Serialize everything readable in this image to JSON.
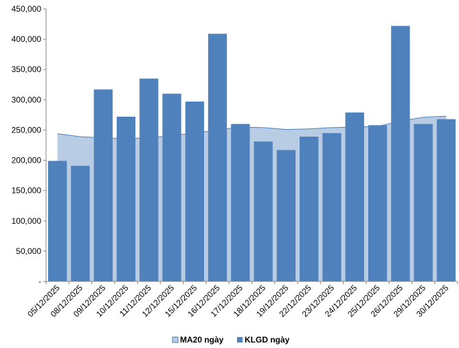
{
  "chart_data": {
    "type": "bar",
    "title": "",
    "xlabel": "",
    "ylabel": "",
    "ylim": [
      0,
      450000
    ],
    "y_ticks": [
      0,
      50000,
      100000,
      150000,
      200000,
      250000,
      300000,
      350000,
      400000,
      450000
    ],
    "y_tick_labels": [
      "-",
      "50,000",
      "100,000",
      "150,000",
      "200,000",
      "250,000",
      "300,000",
      "350,000",
      "400,000",
      "450,000"
    ],
    "grid": false,
    "legend_position": "bottom",
    "categories": [
      "05/12/2025",
      "08/12/2025",
      "09/12/2025",
      "10/12/2025",
      "11/12/2025",
      "12/12/2025",
      "15/12/2025",
      "16/12/2025",
      "17/12/2025",
      "18/12/2025",
      "19/12/2025",
      "22/12/2025",
      "23/12/2025",
      "24/12/2025",
      "25/12/2025",
      "26/12/2025",
      "29/12/2025",
      "30/12/2025"
    ],
    "series": [
      {
        "name": "MA20 ngày",
        "type": "area",
        "color": "#b8cce4",
        "line_color": "#4f81bd",
        "values": [
          244000,
          239000,
          237000,
          236000,
          237000,
          241000,
          245000,
          250000,
          255000,
          254000,
          251000,
          252000,
          254000,
          255000,
          256000,
          265000,
          271000,
          273000
        ]
      },
      {
        "name": "KLGD ngày",
        "type": "bar",
        "color": "#4f81bd",
        "values": [
          199000,
          191000,
          317000,
          272000,
          335000,
          310000,
          297000,
          409000,
          260000,
          231000,
          217000,
          239000,
          245000,
          279000,
          258000,
          422000,
          260000,
          268000
        ]
      }
    ]
  }
}
